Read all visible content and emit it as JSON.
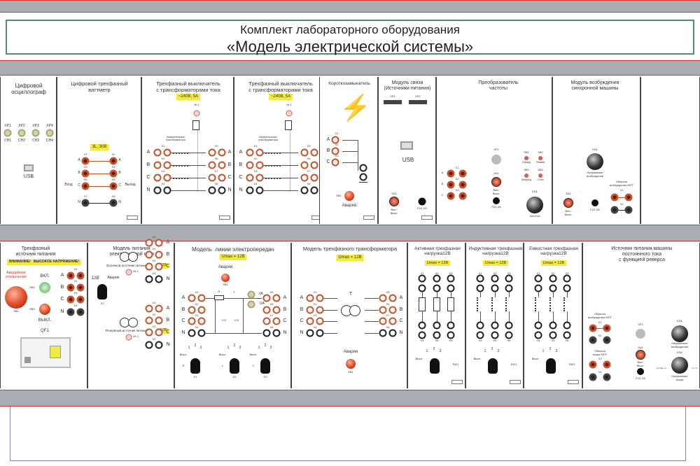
{
  "title": {
    "line1": "Комплект лабораторного оборудования",
    "line2": "«Модель электрической системы»"
  },
  "colors": {
    "frame": "#a9acb3",
    "divider": "#dd3333",
    "title_border": "#4f8f73",
    "terminal": "#c9522c",
    "badge": "#f3ea3a"
  },
  "top": {
    "oscilloscope": {
      "title": "Цифровой\nосциллограф",
      "connectors": [
        "XP1",
        "XP2",
        "XP3",
        "XP4"
      ],
      "channels": [
        "CH1",
        "CH2",
        "CH3",
        "CH4"
      ],
      "usb": "USB"
    },
    "wattmeter": {
      "title": "Цифровой трехфазный\nваттметр",
      "badge": "3L, 30В",
      "left": [
        "X1",
        "X3",
        "X5",
        "X7"
      ],
      "right": [
        "X2",
        "X4",
        "X6",
        "X8"
      ],
      "phases": [
        "A",
        "B",
        "C",
        "N"
      ],
      "input": "Вход",
      "output": "Выход"
    },
    "breaker1": {
      "title": "Трехфазный выключатель\nс трансформаторами тока",
      "badge": "~240В, 5А",
      "lamp": "HL1",
      "note": "Измерительные\nтрансформаторы",
      "left": [
        "X1",
        "X2",
        "X3",
        "X4"
      ],
      "right": [
        "X5",
        "X6",
        "X7",
        "X8"
      ],
      "phases": [
        "A",
        "B",
        "C",
        "N"
      ]
    },
    "breaker2": {
      "title": "Трехфазный выключатель\nс трансформаторами тока",
      "badge": "~240В, 5А",
      "lamp": "HL1",
      "note": "Измерительные\nтрансформаторы",
      "left": [
        "X1",
        "X2",
        "X3",
        "X4"
      ],
      "right": [
        "X5",
        "X6",
        "X7",
        "X8"
      ],
      "phases": [
        "A",
        "B",
        "C",
        "N"
      ]
    },
    "short_circuit": {
      "title": "Короткозамыкатель",
      "left": [
        "X1",
        "X2",
        "X3"
      ],
      "phases": [
        "A",
        "B",
        "C"
      ],
      "button": "SB1",
      "button_label": "Авария"
    },
    "comm": {
      "title": "Модуль связи\n(Источники питания)",
      "connectors": [
        "XP1",
        "XP2"
      ],
      "usb": "USB",
      "switch": "SA1",
      "switch_label": "Вкл./\nВыкл.",
      "fuse": "FU1 2A"
    },
    "freq": {
      "title": "Преобразователь\nчастоты",
      "connector": "XP1",
      "switch": "SA1",
      "switch_label": "Вкл./\nВыкл.",
      "fuse": "FU1 2A",
      "buttons": [
        "SB1",
        "SB2",
        "SB3",
        "SB4"
      ],
      "button_labels": [
        "Назад",
        "Режим",
        "Вперед",
        "Стоп"
      ],
      "encoder": "EN1",
      "encoder_label": "Частота",
      "left": [
        "X1",
        "X2",
        "X3"
      ],
      "phases": [
        "A",
        "B",
        "C"
      ]
    },
    "excitation": {
      "title": "Модуль возбуждения\nсинхронной машины",
      "encoder": "EN1",
      "encoder_label": "Напряжение\nвозбуждения",
      "winding": "Обмотка\nвозбуждения МПТ",
      "terms": [
        "X1",
        "X2"
      ],
      "switch": "SA1",
      "switch_label": "Вкл./\nВыкл.",
      "fuse": "FU1 2A"
    }
  },
  "bottom": {
    "source": {
      "title": "Трехфазный\nисточник питания",
      "warning": "ВНИМАНИЕ!   ВЫСОКОЕ НАПРЯЖЕНИЕ!",
      "emergency": "Аварийное\nотключение",
      "sb1": "SB1",
      "on": "ВКЛ.",
      "sb2": "SB2",
      "off": "ВЫКЛ.",
      "sb3": "SB3",
      "terms": [
        "X1",
        "X2",
        "X3",
        "X4"
      ],
      "phases": [
        "A",
        "B",
        "C",
        "N"
      ],
      "breaker": "QF1"
    },
    "grid": {
      "title": "Модель питания\nэлектрической сети",
      "main": "Основной источник питания",
      "main_badge": "~12В",
      "lamp1": "HL1",
      "reserve": "Резервный источник питания",
      "reserve_badge": "~12В",
      "lamp2": "HL2",
      "v12": "12В",
      "alarm": "Авария",
      "switch": "S1",
      "terms": [
        "X1",
        "X2",
        "X3",
        "X4"
      ],
      "phases": [
        "A",
        "B",
        "C",
        "N"
      ]
    },
    "line": {
      "title": "Модель  линии электропередач",
      "badge": "Umax = 12В",
      "alarm": "Авария",
      "button": "SB1",
      "r": "R",
      "l": "L",
      "ia": "IA",
      "ua": "UA",
      "c2": "C/2",
      "left": [
        "X1",
        "X2",
        "X3",
        "X4"
      ],
      "right": [
        "X5",
        "X6",
        "X7",
        "X8"
      ],
      "phases": [
        "A",
        "B",
        "C",
        "N"
      ],
      "positions": [
        "Выкл.",
        "1",
        "2",
        "3"
      ],
      "switches": [
        "S1",
        "S2",
        "S3"
      ],
      "switch_labels": [
        "R",
        "L",
        "C"
      ]
    },
    "transformer": {
      "title": "Модель трехфазного трансформатора",
      "badge": "Umax = 12В",
      "t": "T",
      "left": [
        "X1",
        "X2",
        "X3",
        "X4"
      ],
      "right": [
        "X5",
        "X6",
        "X7",
        "X8"
      ],
      "phases": [
        "A",
        "B",
        "C",
        "N"
      ],
      "alarm": "Авария",
      "button": "SB1"
    },
    "active": {
      "title": "Активная трехфазная\nнагрузка12В",
      "badge": "Umax = 12В",
      "top": [
        "X1",
        "X2",
        "X3"
      ],
      "bottom": [
        "X4",
        "X5",
        "X6"
      ],
      "positions": [
        "Выкл.",
        "1",
        "2",
        "3"
      ],
      "switch": "SW1"
    },
    "inductive": {
      "title": "Индуктивная трехфазная\nнагрузка12В",
      "badge": "Umax = 12В",
      "top": [
        "X1",
        "X2",
        "X3"
      ],
      "bottom": [
        "X4",
        "X5",
        "X6"
      ],
      "positions": [
        "Выкл.",
        "1",
        "2",
        "3"
      ],
      "switch": "SW1"
    },
    "capacitive": {
      "title": "Емкостная трехфазная\nнагрузка12В",
      "badge": "Umax = 12В",
      "top": [
        "X1",
        "X2",
        "X3"
      ],
      "bottom": [
        "X4",
        "X5",
        "X6"
      ],
      "positions": [
        "Выкл.",
        "1",
        "2",
        "3"
      ],
      "switch": "SW1"
    },
    "dc": {
      "title": "Источник питания машины\nпостоянного тока\nс функцией реверса",
      "winding1": "Обмотка\nвозбуждения МПТ",
      "winding2": "Обмотка\nякоря МПТ",
      "terms": [
        "X1",
        "X2",
        "X3",
        "X4"
      ],
      "connector": "XP1",
      "switch": "SA1",
      "switch_label": "Вкл./\nВыкл.",
      "fuse": "FU1 2A",
      "en1": "EN1",
      "en1_label": "Напряжение\nвозбуждения",
      "en2": "EN2",
      "en2_label": "Напряжение\nякоря",
      "ccw": "против ч.с.",
      "cw": "по ч.с."
    }
  }
}
